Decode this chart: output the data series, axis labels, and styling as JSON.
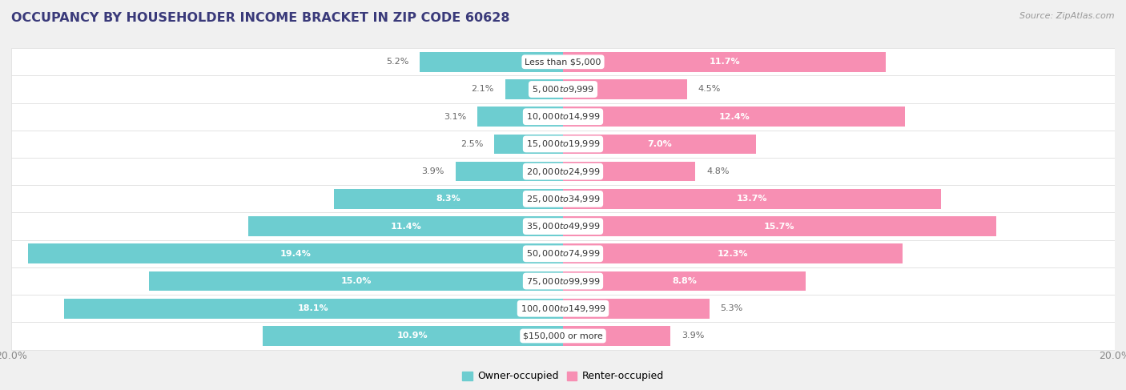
{
  "title": "OCCUPANCY BY HOUSEHOLDER INCOME BRACKET IN ZIP CODE 60628",
  "source": "Source: ZipAtlas.com",
  "categories": [
    "Less than $5,000",
    "$5,000 to $9,999",
    "$10,000 to $14,999",
    "$15,000 to $19,999",
    "$20,000 to $24,999",
    "$25,000 to $34,999",
    "$35,000 to $49,999",
    "$50,000 to $74,999",
    "$75,000 to $99,999",
    "$100,000 to $149,999",
    "$150,000 or more"
  ],
  "owner_values": [
    5.2,
    2.1,
    3.1,
    2.5,
    3.9,
    8.3,
    11.4,
    19.4,
    15.0,
    18.1,
    10.9
  ],
  "renter_values": [
    11.7,
    4.5,
    12.4,
    7.0,
    4.8,
    13.7,
    15.7,
    12.3,
    8.8,
    5.3,
    3.9
  ],
  "owner_color": "#6DCDD0",
  "renter_color": "#F78FB3",
  "bg_color": "#f0f0f0",
  "row_color": "#ffffff",
  "row_alt_color": "#f7f7f7",
  "xlim": 20.0,
  "title_color": "#3a3a7a",
  "source_color": "#999999",
  "label_white": "#ffffff",
  "label_dark": "#666666",
  "inside_threshold_owner": 7.0,
  "inside_threshold_renter": 7.0,
  "legend_owner": "Owner-occupied",
  "legend_renter": "Renter-occupied",
  "bar_height": 0.72
}
